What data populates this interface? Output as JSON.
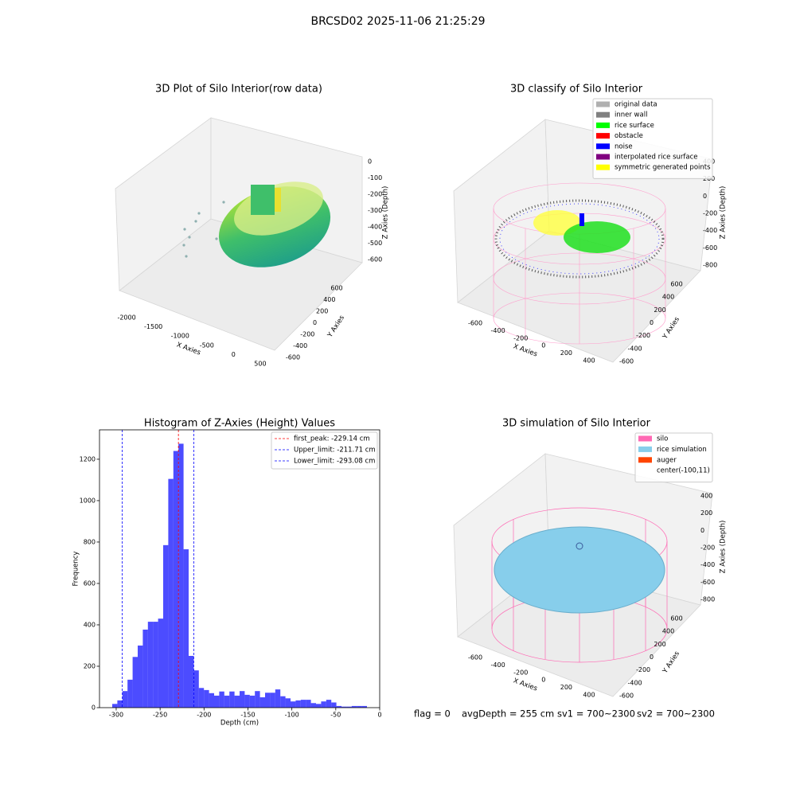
{
  "title": "BRCSD02 2025-11-06 21:25:29",
  "chart_data": [
    {
      "type": "scatter3d",
      "title": "3D Plot of Silo Interior(row data)",
      "xlabel": "X Axies",
      "ylabel": "Y Axies",
      "zlabel": "Z Axies (Depth)",
      "xlim": [
        -2150,
        650
      ],
      "xticks": [
        -2000,
        -1500,
        -1000,
        -500,
        0,
        500
      ],
      "ylim": [
        -680,
        680
      ],
      "yticks": [
        -600,
        -400,
        -200,
        0,
        200,
        400,
        600
      ],
      "zlim": [
        -660,
        30
      ],
      "zticks": [
        0,
        -100,
        -200,
        -300,
        -400,
        -500,
        -600
      ]
    },
    {
      "type": "scatter3d",
      "title": "3D classify of Silo Interior",
      "xlabel": "X Axies",
      "ylabel": "Y Axies",
      "zlabel": "Z Axies (Depth)",
      "xlim": [
        -740,
        540
      ],
      "xticks": [
        -600,
        -400,
        -200,
        0,
        200,
        400
      ],
      "ylim": [
        -700,
        700
      ],
      "yticks": [
        -600,
        -400,
        -200,
        0,
        200,
        400,
        600
      ],
      "zlim": [
        -900,
        450
      ],
      "zticks": [
        400,
        200,
        0,
        -200,
        -400,
        -600,
        -800
      ],
      "series": [
        {
          "name": "original data",
          "color": "#b0b0b0"
        },
        {
          "name": "inner wall",
          "color": "#808080"
        },
        {
          "name": "rice surface",
          "color": "#00ff00"
        },
        {
          "name": "obstacle",
          "color": "#ff0000"
        },
        {
          "name": "noise",
          "color": "#0000ff"
        },
        {
          "name": "interpolated rice surface",
          "color": "#800080"
        },
        {
          "name": "symmetric generated points",
          "color": "#ffff00"
        }
      ]
    },
    {
      "type": "histogram",
      "title": "Histogram of Z-Axies (Height) Values",
      "xlabel": "Depth (cm)",
      "ylabel": "Frequency",
      "color": "#0000ff",
      "alpha": 0.7,
      "bins": [
        -304.5,
        -298.7,
        -292.9,
        -287.1,
        -281.3,
        -275.5,
        -269.7,
        -263.9,
        -258.1,
        -252.3,
        -246.5,
        -240.7,
        -234.9,
        -229.1,
        -223.3,
        -217.5,
        -211.7,
        -205.9,
        -200.1,
        -194.3,
        -188.5,
        -182.7,
        -176.9,
        -171.1,
        -165.3,
        -159.5,
        -153.7,
        -147.9,
        -142.1,
        -136.3,
        -130.5,
        -124.7,
        -118.9,
        -113.1,
        -107.3,
        -101.5,
        -95.7,
        -89.9,
        -84.1,
        -78.3,
        -72.5,
        -66.7,
        -60.9,
        -55.1,
        -49.3,
        -43.5,
        -37.7,
        -31.9,
        -26.1,
        -20.3,
        -14.5
      ],
      "counts": [
        18,
        35,
        80,
        135,
        245,
        300,
        377,
        415,
        415,
        430,
        785,
        1105,
        1240,
        1275,
        765,
        250,
        180,
        95,
        85,
        70,
        58,
        78,
        58,
        78,
        58,
        80,
        62,
        58,
        80,
        50,
        72,
        72,
        88,
        55,
        45,
        30,
        35,
        38,
        38,
        22,
        18,
        30,
        38,
        25,
        8,
        5,
        5,
        8,
        8,
        8
      ],
      "xlim": [
        -319,
        0
      ],
      "xticks": [
        -300,
        -250,
        -200,
        -150,
        -100,
        -50,
        0
      ],
      "ylim": [
        0,
        1342
      ],
      "yticks": [
        0,
        200,
        400,
        600,
        800,
        1000,
        1200
      ],
      "lines": [
        {
          "name": "first_peak: -229.14 cm",
          "value": -229.14,
          "color": "#ff0000"
        },
        {
          "name": "Upper_limit: -211.71 cm",
          "value": -211.71,
          "color": "#0000ff"
        },
        {
          "name": "Lower_limit: -293.08 cm",
          "value": -293.08,
          "color": "#0000ff"
        }
      ],
      "legend": "upper right"
    },
    {
      "type": "scatter3d",
      "title": "3D simulation of Silo Interior",
      "xlabel": "X Axies",
      "ylabel": "Y Axies",
      "zlabel": "Z Axies (Depth)",
      "xlim": [
        -740,
        540
      ],
      "xticks": [
        -600,
        -400,
        -200,
        0,
        200,
        400
      ],
      "ylim": [
        -700,
        700
      ],
      "yticks": [
        -600,
        -400,
        -200,
        0,
        200,
        400,
        600
      ],
      "zlim": [
        -900,
        450
      ],
      "zticks": [
        400,
        200,
        0,
        -200,
        -400,
        -600,
        -800
      ],
      "series": [
        {
          "name": "silo",
          "color": "#ff69b4"
        },
        {
          "name": "rice simulation",
          "color": "#87ceeb"
        },
        {
          "name": "auger",
          "color": "#ff4500"
        },
        {
          "name": "center(-100,11)",
          "color": "#ffffff"
        }
      ]
    }
  ],
  "footer": [
    "flag = 0",
    "avgDepth = 255 cm",
    "sv1 = 700~2300",
    "sv2 = 700~2300"
  ]
}
